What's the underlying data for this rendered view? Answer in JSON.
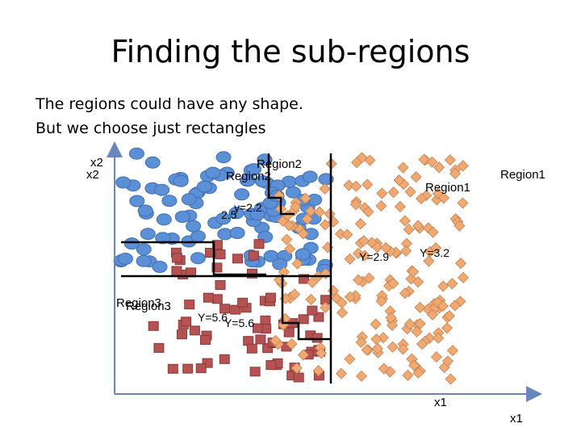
{
  "slide": {
    "title": "Finding the sub-regions",
    "lines": [
      "The regions could have any shape.",
      "But we choose just rectangles"
    ]
  },
  "diagram": {
    "axis_labels": {
      "y_main": "x2",
      "y_shadow": "x2",
      "x_main": "x1",
      "x_shadow": "x1"
    },
    "region_labels": {
      "region2_a": "Region2",
      "region2_b": "Region2",
      "region1_a": "Region1",
      "region1_b": "Region1",
      "region3_a": "Region3",
      "region3_b": "Region3"
    },
    "split_labels": {
      "y22_a": "y=2.2",
      "y22_b": "2.5",
      "y32_a": "Y=3.2",
      "y32_b": "Y=2.9",
      "y56_a": "Y=5.6",
      "y56_b": "Y=5.6"
    },
    "colors": {
      "class_blue": "#5b8fd6",
      "class_blue_stroke": "#3f6fb5",
      "class_red": "#b55252",
      "class_red_stroke": "#8c3a3a",
      "class_orange": "#f0a973",
      "class_orange_stroke": "#c4824f",
      "axis": "#6a87bd",
      "boundary": "#000000"
    }
  }
}
